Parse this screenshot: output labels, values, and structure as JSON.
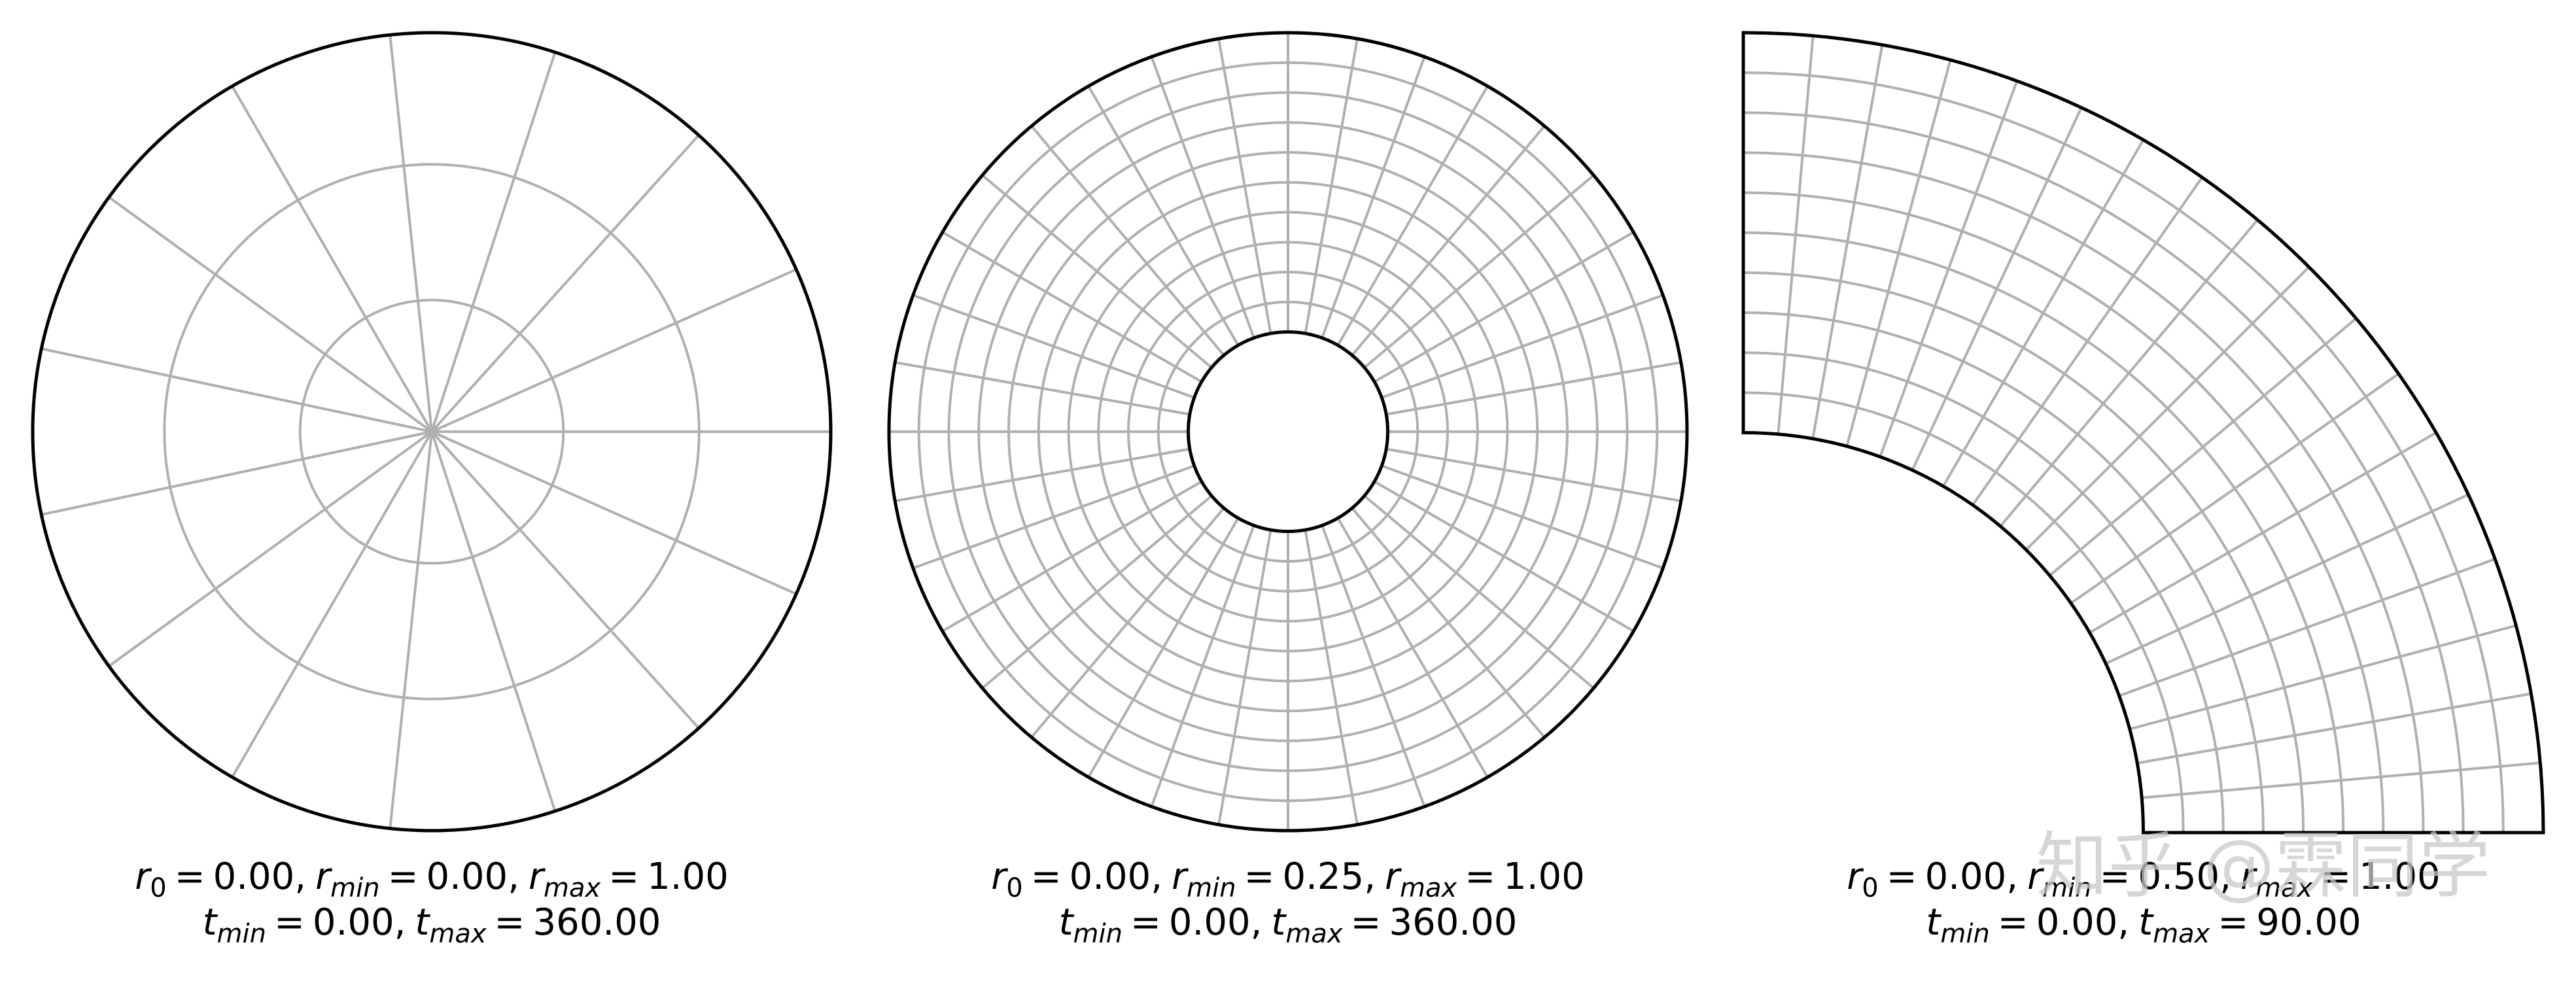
{
  "chart_data": [
    {
      "type": "polar",
      "relation": "=",
      "separator": ",",
      "params": [
        {
          "symbol": "r",
          "subscript": "0",
          "value": 0,
          "label": "0.00"
        },
        {
          "symbol": "r",
          "subscript": "min",
          "value": 0,
          "label": "0.00"
        },
        {
          "symbol": "r",
          "subscript": "max",
          "value": 1,
          "label": "1.00"
        },
        {
          "symbol": "t",
          "subscript": "min",
          "value": 0,
          "label": "0.00"
        },
        {
          "symbol": "t",
          "subscript": "max",
          "value": 360,
          "label": "360.00"
        }
      ],
      "rticks": [
        0.33,
        0.67
      ],
      "thetaticks": [
        0,
        24,
        48,
        72,
        96,
        120,
        144,
        168,
        192,
        216,
        240,
        264,
        288,
        312,
        336
      ],
      "grid_color": "#b0b0b0",
      "frame_color": "#000000"
    },
    {
      "type": "polar",
      "relation": "=",
      "separator": ",",
      "params": [
        {
          "symbol": "r",
          "subscript": "0",
          "value": 0,
          "label": "0.00"
        },
        {
          "symbol": "r",
          "subscript": "min",
          "value": 0.25,
          "label": "0.25"
        },
        {
          "symbol": "r",
          "subscript": "max",
          "value": 1,
          "label": "1.00"
        },
        {
          "symbol": "t",
          "subscript": "min",
          "value": 0,
          "label": "0.00"
        },
        {
          "symbol": "t",
          "subscript": "max",
          "value": 360,
          "label": "360.00"
        }
      ],
      "rticks": [
        0.325,
        0.4,
        0.475,
        0.55,
        0.625,
        0.7,
        0.775,
        0.85,
        0.925
      ],
      "thetaticks": [
        0,
        10,
        20,
        30,
        40,
        50,
        60,
        70,
        80,
        90,
        100,
        110,
        120,
        130,
        140,
        150,
        160,
        170,
        180,
        190,
        200,
        210,
        220,
        230,
        240,
        250,
        260,
        270,
        280,
        290,
        300,
        310,
        320,
        330,
        340,
        350
      ],
      "grid_color": "#b0b0b0",
      "frame_color": "#000000"
    },
    {
      "type": "polar",
      "relation": "=",
      "separator": ",",
      "params": [
        {
          "symbol": "r",
          "subscript": "0",
          "value": 0,
          "label": "0.00"
        },
        {
          "symbol": "r",
          "subscript": "min",
          "value": 0.5,
          "label": "0.50"
        },
        {
          "symbol": "r",
          "subscript": "max",
          "value": 1,
          "label": "1.00"
        },
        {
          "symbol": "t",
          "subscript": "min",
          "value": 0,
          "label": "0.00"
        },
        {
          "symbol": "t",
          "subscript": "max",
          "value": 90,
          "label": "90.00"
        }
      ],
      "rticks": [
        0.55,
        0.6,
        0.65,
        0.7,
        0.75,
        0.8,
        0.85,
        0.9,
        0.95
      ],
      "thetaticks": [
        5,
        10,
        15,
        20,
        25,
        30,
        35,
        40,
        45,
        50,
        55,
        60,
        65,
        70,
        75,
        80,
        85
      ],
      "grid_color": "#b0b0b0",
      "frame_color": "#000000"
    }
  ],
  "watermark": "知乎 @霖同学"
}
